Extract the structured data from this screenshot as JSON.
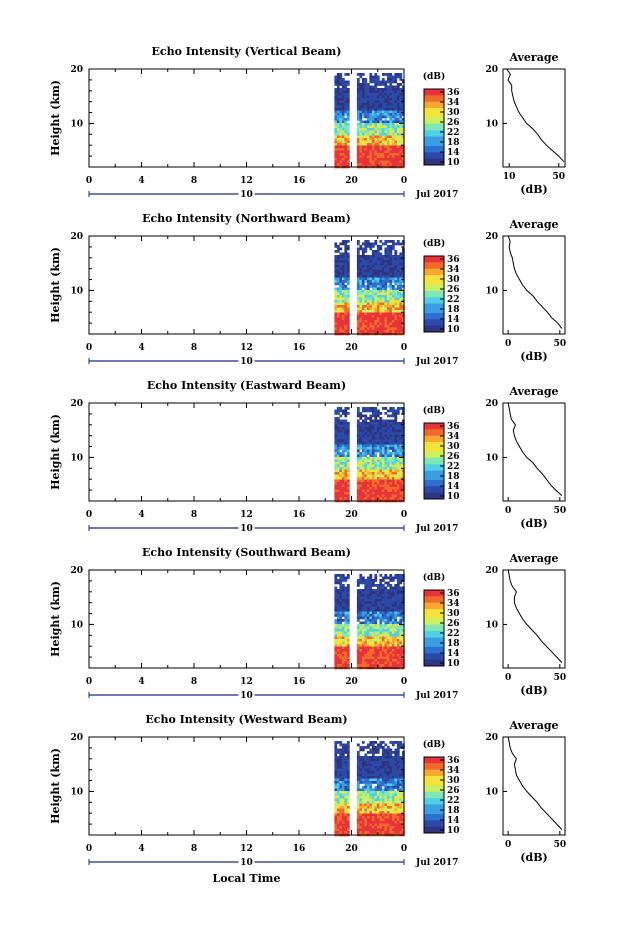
{
  "chart_data": [
    {
      "type": "heatmap",
      "title": "Echo Intensity (Vertical Beam)",
      "ylabel": "Height (km)",
      "y_ticks": [
        "20",
        "10"
      ],
      "x_ticks": [
        "0",
        "4",
        "8",
        "12",
        "16",
        "20",
        "0"
      ],
      "date_tick": "10",
      "date_label": "Jul 2017",
      "ylim": [
        2,
        20
      ],
      "xlim": [
        0,
        24
      ],
      "data_start_hour": 18.7,
      "gap_hours": [
        19.8,
        20.3
      ],
      "colorbar": {
        "label": "(dB)",
        "ticks": [
          "36",
          "34",
          "30",
          "26",
          "22",
          "18",
          "14",
          "10"
        ]
      },
      "profile": {
        "title": "Average",
        "xlabel": "(dB)",
        "x_ticks": [
          "10",
          "50"
        ],
        "xlim": [
          5,
          55
        ],
        "heights": [
          3,
          4,
          5,
          6,
          7,
          8,
          9,
          10,
          11,
          12,
          13,
          14,
          15,
          16,
          17,
          18,
          19,
          20
        ],
        "values": [
          54,
          50,
          45,
          40,
          36,
          33,
          29,
          24,
          21,
          18,
          16,
          14,
          13,
          12,
          12,
          9,
          11,
          8
        ]
      }
    },
    {
      "type": "heatmap",
      "title": "Echo Intensity (Northward Beam)",
      "ylabel": "Height (km)",
      "y_ticks": [
        "20",
        "10"
      ],
      "x_ticks": [
        "0",
        "4",
        "8",
        "12",
        "16",
        "20",
        "0"
      ],
      "date_tick": "10",
      "date_label": "Jul 2017",
      "ylim": [
        2,
        20
      ],
      "xlim": [
        0,
        24
      ],
      "data_start_hour": 18.7,
      "gap_hours": [
        19.8,
        20.3
      ],
      "colorbar": {
        "label": "(dB)",
        "ticks": [
          "36",
          "34",
          "30",
          "26",
          "22",
          "18",
          "14",
          "10"
        ]
      },
      "profile": {
        "title": "Average",
        "xlabel": "(dB)",
        "x_ticks": [
          "0",
          "50"
        ],
        "xlim": [
          -5,
          55
        ],
        "heights": [
          3,
          4,
          5,
          6,
          7,
          8,
          9,
          10,
          11,
          12,
          13,
          14,
          15,
          16,
          17,
          18,
          19,
          20
        ],
        "values": [
          52,
          48,
          42,
          38,
          33,
          28,
          24,
          18,
          14,
          11,
          8,
          6,
          5,
          4,
          2,
          1,
          2,
          0
        ]
      }
    },
    {
      "type": "heatmap",
      "title": "Echo Intensity (Eastward Beam)",
      "ylabel": "Height (km)",
      "y_ticks": [
        "20",
        "10"
      ],
      "x_ticks": [
        "0",
        "4",
        "8",
        "12",
        "16",
        "20",
        "0"
      ],
      "date_tick": "10",
      "date_label": "Jul 2017",
      "ylim": [
        2,
        20
      ],
      "xlim": [
        0,
        24
      ],
      "data_start_hour": 18.7,
      "gap_hours": [
        19.8,
        20.3
      ],
      "colorbar": {
        "label": "(dB)",
        "ticks": [
          "36",
          "34",
          "30",
          "26",
          "22",
          "18",
          "14",
          "10"
        ]
      },
      "profile": {
        "title": "Average",
        "xlabel": "(dB)",
        "x_ticks": [
          "0",
          "50"
        ],
        "xlim": [
          -5,
          55
        ],
        "heights": [
          3,
          4,
          5,
          6,
          7,
          8,
          9,
          10,
          11,
          12,
          13,
          14,
          15,
          16,
          17,
          18,
          19,
          20
        ],
        "values": [
          52,
          46,
          41,
          37,
          33,
          28,
          24,
          18,
          14,
          11,
          8,
          6,
          5,
          7,
          3,
          2,
          1,
          0
        ]
      }
    },
    {
      "type": "heatmap",
      "title": "Echo Intensity (Southward Beam)",
      "ylabel": "Height (km)",
      "y_ticks": [
        "20",
        "10"
      ],
      "x_ticks": [
        "0",
        "4",
        "8",
        "12",
        "16",
        "20",
        "0"
      ],
      "date_tick": "10",
      "date_label": "Jul 2017",
      "ylim": [
        2,
        20
      ],
      "xlim": [
        0,
        24
      ],
      "data_start_hour": 18.7,
      "gap_hours": [
        19.8,
        20.3
      ],
      "colorbar": {
        "label": "(dB)",
        "ticks": [
          "36",
          "34",
          "30",
          "26",
          "22",
          "18",
          "14",
          "10"
        ]
      },
      "profile": {
        "title": "Average",
        "xlabel": "(dB)",
        "x_ticks": [
          "0",
          "50"
        ],
        "xlim": [
          -5,
          55
        ],
        "heights": [
          3,
          4,
          5,
          6,
          7,
          8,
          9,
          10,
          11,
          12,
          13,
          14,
          15,
          16,
          17,
          18,
          19,
          20
        ],
        "values": [
          52,
          47,
          42,
          37,
          32,
          28,
          23,
          18,
          14,
          11,
          8,
          6,
          6,
          8,
          4,
          2,
          1,
          0
        ]
      }
    },
    {
      "type": "heatmap",
      "title": "Echo Intensity (Westward Beam)",
      "ylabel": "Height (km)",
      "y_ticks": [
        "20",
        "10"
      ],
      "x_ticks": [
        "0",
        "4",
        "8",
        "12",
        "16",
        "20",
        "0"
      ],
      "date_tick": "10",
      "date_label": "Jul 2017",
      "xlabel": "Local Time",
      "ylim": [
        2,
        20
      ],
      "xlim": [
        0,
        24
      ],
      "data_start_hour": 18.7,
      "gap_hours": [
        19.8,
        20.3
      ],
      "colorbar": {
        "label": "(dB)",
        "ticks": [
          "36",
          "34",
          "30",
          "26",
          "22",
          "18",
          "14",
          "10"
        ]
      },
      "profile": {
        "title": "Average",
        "xlabel": "(dB)",
        "x_ticks": [
          "0",
          "50"
        ],
        "xlim": [
          -5,
          55
        ],
        "heights": [
          3,
          4,
          5,
          6,
          7,
          8,
          9,
          10,
          11,
          12,
          13,
          14,
          15,
          16,
          17,
          18,
          19,
          20
        ],
        "values": [
          52,
          47,
          42,
          37,
          32,
          28,
          23,
          18,
          14,
          11,
          8,
          7,
          6,
          8,
          4,
          2,
          1,
          0
        ]
      }
    }
  ]
}
